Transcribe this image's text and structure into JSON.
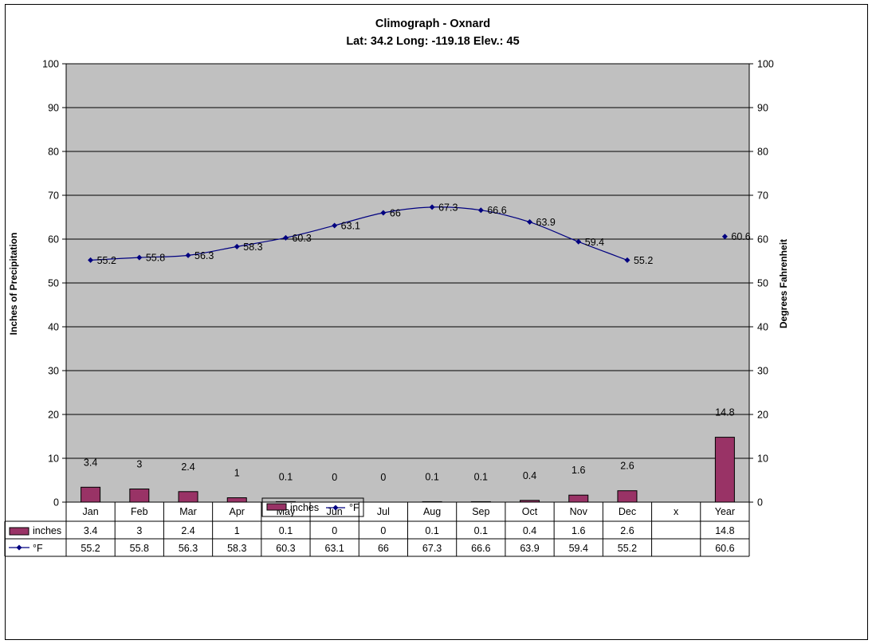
{
  "chart_data": {
    "type": "bar",
    "title": "Climograph - Oxnard",
    "subtitle": "Lat: 34.2 Long: -119.18 Elev.: 45",
    "ylabel_left": "Inches of Precipitation",
    "ylabel_right": "Degrees Fahrenheit",
    "ylim": [
      0,
      100
    ],
    "y_ticks": [
      "0",
      "10",
      "20",
      "30",
      "40",
      "50",
      "60",
      "70",
      "80",
      "90",
      "100"
    ],
    "categories": [
      "Jan",
      "Feb",
      "Mar",
      "Apr",
      "May",
      "Jun",
      "Jul",
      "Aug",
      "Sep",
      "Oct",
      "Nov",
      "Dec",
      "x",
      "Year"
    ],
    "series": [
      {
        "name": "inches",
        "kind": "bar",
        "color": "#993366",
        "values": [
          3.4,
          3,
          2.4,
          1,
          0.1,
          0,
          0,
          0.1,
          0.1,
          0.4,
          1.6,
          2.6,
          null,
          14.8
        ],
        "labels": [
          "3.4",
          "3",
          "2.4",
          "1",
          "0.1",
          "0",
          "0",
          "0.1",
          "0.1",
          "0.4",
          "1.6",
          "2.6",
          "",
          "14.8"
        ]
      },
      {
        "name": "°F",
        "kind": "line",
        "color": "#000080",
        "values": [
          55.2,
          55.8,
          56.3,
          58.3,
          60.3,
          63.1,
          66,
          67.3,
          66.6,
          63.9,
          59.4,
          55.2,
          null,
          60.6
        ],
        "labels": [
          "55.2",
          "55.8",
          "56.3",
          "58.3",
          "60.3",
          "63.1",
          "66",
          "67.3",
          "66.6",
          "63.9",
          "59.4",
          "55.2",
          "",
          "60.6"
        ]
      }
    ],
    "grid": true,
    "plot_background": "#c0c0c0",
    "legend_position": "bottom-center",
    "data_table": true
  }
}
